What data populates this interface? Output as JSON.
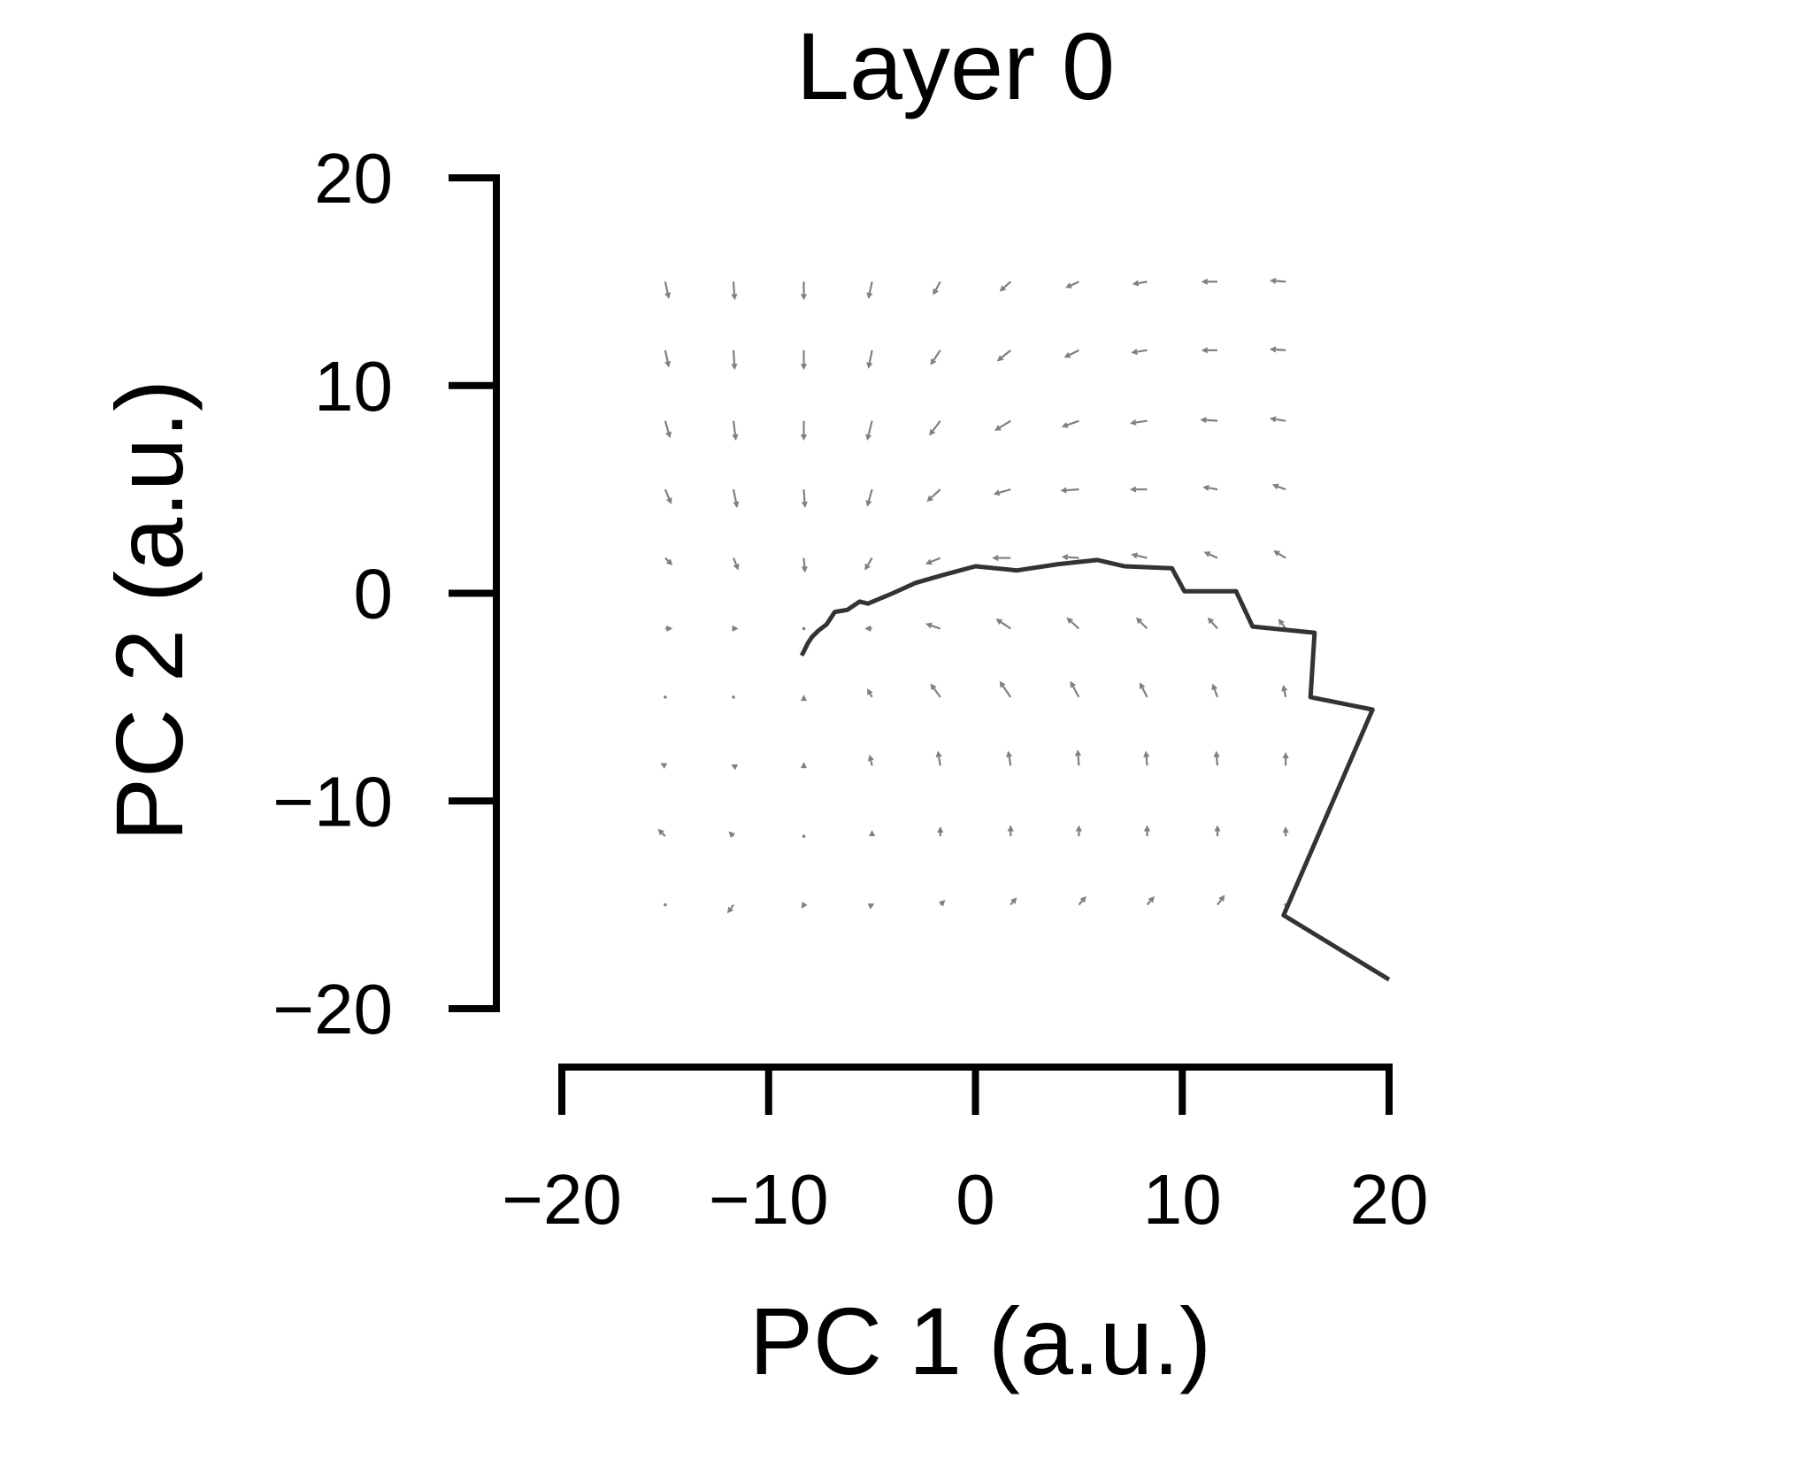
{
  "chart_data": {
    "type": "line",
    "title": "Layer 0",
    "xlabel": "PC 1 (a.u.)",
    "ylabel": "PC 2 (a.u.)",
    "xlim": [
      -20,
      20
    ],
    "ylim": [
      -20,
      20
    ],
    "xticks": [
      -20,
      -10,
      0,
      10,
      20
    ],
    "yticks": [
      -20,
      -10,
      0,
      10,
      20
    ],
    "xtick_labels": [
      "−20",
      "−10",
      "0",
      "10",
      "20"
    ],
    "ytick_labels": [
      "−20",
      "−10",
      "0",
      "10",
      "20"
    ],
    "grid": false,
    "legend": "none",
    "colors": {
      "axes": "#000000",
      "trajectory": "#333333",
      "vector_field": "#808080"
    },
    "trajectory": {
      "x": [
        20.0,
        14.9,
        19.2,
        16.2,
        16.4,
        13.4,
        12.6,
        10.1,
        9.5,
        7.2,
        5.9,
        4.0,
        2.0,
        0.0,
        -1.5,
        -2.9,
        -4.0,
        -5.2,
        -5.6,
        -6.2,
        -6.8,
        -7.2,
        -7.6,
        -7.9,
        -8.1,
        -8.3,
        -8.4
      ],
      "y": [
        -18.6,
        -15.5,
        -5.6,
        -5.0,
        -1.9,
        -1.6,
        0.1,
        0.1,
        1.2,
        1.3,
        1.6,
        1.4,
        1.1,
        1.3,
        0.9,
        0.5,
        0.0,
        -0.5,
        -0.4,
        -0.8,
        -0.9,
        -1.5,
        -1.8,
        -2.1,
        -2.4,
        -2.8,
        -3.0
      ]
    },
    "vector_field": {
      "x": [
        -15,
        -11.7,
        -8.3,
        -5,
        -1.7,
        1.7,
        5,
        8.3,
        11.7,
        15
      ],
      "y": [
        15,
        11.7,
        8.3,
        5,
        1.7,
        -1.7,
        -5,
        -8.3,
        -11.7,
        -15
      ],
      "u": [
        [
          0.15,
          0.05,
          0.0,
          -0.15,
          -0.3,
          -0.45,
          -0.55,
          -0.6,
          -0.65,
          -0.65
        ],
        [
          0.15,
          0.05,
          0.0,
          -0.15,
          -0.4,
          -0.55,
          -0.6,
          -0.65,
          -0.65,
          -0.65
        ],
        [
          0.2,
          0.1,
          0.0,
          -0.2,
          -0.45,
          -0.65,
          -0.7,
          -0.7,
          -0.7,
          -0.65
        ],
        [
          0.25,
          0.15,
          0.05,
          -0.2,
          -0.55,
          -0.7,
          -0.75,
          -0.7,
          -0.6,
          -0.55
        ],
        [
          0.3,
          0.2,
          0.05,
          -0.3,
          -0.6,
          -0.75,
          -0.7,
          -0.65,
          -0.55,
          -0.5
        ],
        [
          0.3,
          0.2,
          0.05,
          -0.3,
          -0.6,
          -0.6,
          -0.5,
          -0.45,
          -0.4,
          -0.3
        ],
        [
          0.05,
          0.02,
          0.0,
          -0.2,
          -0.4,
          -0.45,
          -0.35,
          -0.3,
          -0.2,
          -0.1
        ],
        [
          -0.2,
          -0.1,
          0.0,
          -0.1,
          -0.1,
          -0.1,
          -0.05,
          -0.05,
          -0.05,
          0.0
        ],
        [
          -0.3,
          -0.2,
          0.0,
          0.0,
          0.0,
          0.0,
          0.0,
          0.0,
          0.0,
          0.0
        ],
        [
          0.0,
          -0.25,
          -0.1,
          0.1,
          0.2,
          0.25,
          0.3,
          0.3,
          0.3,
          0.0
        ]
      ],
      "v": [
        [
          -0.7,
          -0.75,
          -0.75,
          -0.7,
          -0.55,
          -0.4,
          -0.25,
          -0.1,
          0.0,
          0.05
        ],
        [
          -0.7,
          -0.8,
          -0.8,
          -0.75,
          -0.6,
          -0.45,
          -0.3,
          -0.1,
          0.0,
          0.05
        ],
        [
          -0.7,
          -0.8,
          -0.8,
          -0.8,
          -0.6,
          -0.4,
          -0.25,
          -0.1,
          0.05,
          0.1
        ],
        [
          -0.6,
          -0.75,
          -0.75,
          -0.7,
          -0.5,
          -0.2,
          -0.05,
          0.0,
          0.1,
          0.2
        ],
        [
          -0.3,
          -0.5,
          -0.6,
          -0.5,
          -0.25,
          0.0,
          0.05,
          0.15,
          0.25,
          0.3
        ],
        [
          0.0,
          0.0,
          -0.05,
          0.0,
          0.2,
          0.4,
          0.45,
          0.45,
          0.45,
          0.4
        ],
        [
          0.0,
          0.0,
          0.1,
          0.35,
          0.55,
          0.65,
          0.65,
          0.6,
          0.55,
          0.5
        ],
        [
          0.1,
          0.05,
          0.15,
          0.45,
          0.6,
          0.6,
          0.65,
          0.6,
          0.6,
          0.55
        ],
        [
          0.3,
          0.2,
          0.05,
          0.25,
          0.4,
          0.45,
          0.45,
          0.45,
          0.45,
          0.4
        ],
        [
          0.0,
          -0.35,
          -0.15,
          0.05,
          0.2,
          0.3,
          0.35,
          0.35,
          0.4,
          0.0
        ]
      ]
    }
  }
}
